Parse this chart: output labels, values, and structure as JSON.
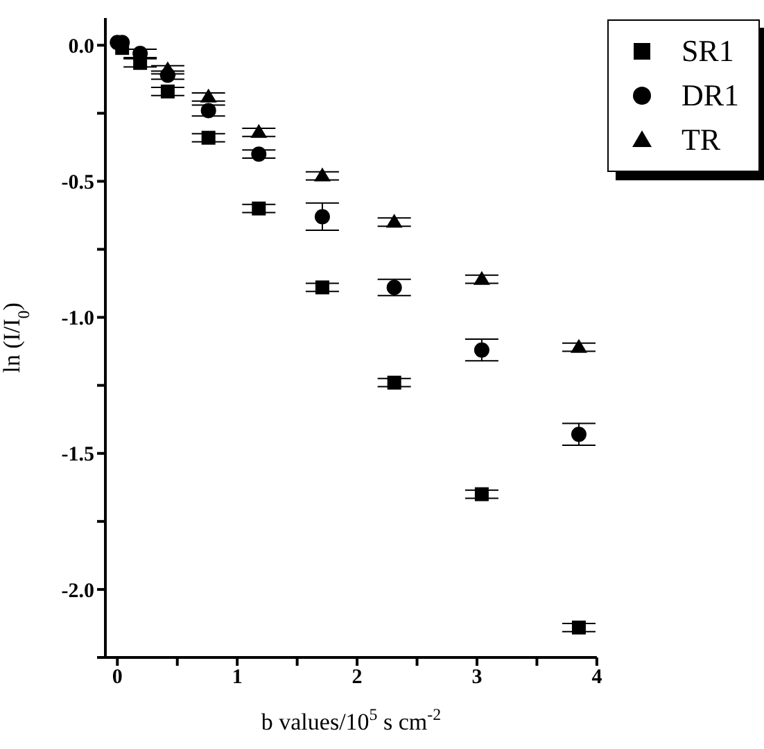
{
  "chart_data": {
    "type": "scatter",
    "xlabel": "b values/10$^{5}$ s cm$^{-2}$",
    "ylabel": "ln (I/I$_{0}$)",
    "xlim": [
      -0.1,
      4
    ],
    "xticks": [
      0,
      {
        "value": 0.5,
        "label": null
      },
      1,
      {
        "value": 1.5,
        "label": null
      },
      2,
      {
        "value": 2.5,
        "label": null
      },
      3,
      {
        "value": 3.5,
        "label": null
      },
      4
    ],
    "ylim": [
      -2.25,
      0.1
    ],
    "yticks": [
      {
        "value": -2.25,
        "label": null
      },
      {
        "value": -2,
        "label": "-2.0"
      },
      {
        "value": -1.75,
        "label": null
      },
      -1.5,
      {
        "value": -1.25,
        "label": null
      },
      {
        "value": -1,
        "label": "-1.0"
      },
      {
        "value": -0.75,
        "label": null
      },
      -0.5,
      {
        "value": -0.25,
        "label": null
      },
      {
        "value": 0,
        "label": "0.0"
      }
    ],
    "grid": false,
    "legend": "top right",
    "x": [
      0,
      0.04,
      0.19,
      0.42,
      0.76,
      1.18,
      1.71,
      2.31,
      3.04,
      3.85
    ],
    "series": [
      {
        "name": "SR1",
        "color": "#000000",
        "marker": "square",
        "values": [
          null,
          -0.01,
          -0.065,
          -0.17,
          -0.34,
          -0.6,
          -0.89,
          -1.24,
          -1.65,
          -2.14
        ],
        "errors": [
          null,
          null,
          0.015,
          0.015,
          0.015,
          0.015,
          0.015,
          0.015,
          0.015,
          0.015
        ]
      },
      {
        "name": "DR1",
        "color": "#000000",
        "marker": "circle",
        "values": [
          0.01,
          0.01,
          -0.03,
          -0.11,
          -0.24,
          -0.4,
          -0.63,
          -0.89,
          -1.12,
          -1.43
        ],
        "errors": [
          null,
          null,
          0.015,
          0.015,
          0.02,
          0.015,
          0.05,
          0.03,
          0.04,
          0.04
        ]
      },
      {
        "name": "TR",
        "color": "#000000",
        "marker": "triangle",
        "values": [
          null,
          null,
          null,
          -0.09,
          -0.19,
          -0.32,
          -0.48,
          -0.65,
          -0.86,
          -1.11
        ],
        "errors": [
          null,
          null,
          null,
          0.015,
          0.015,
          0.015,
          0.015,
          0.015,
          0.015,
          0.015
        ]
      }
    ]
  }
}
